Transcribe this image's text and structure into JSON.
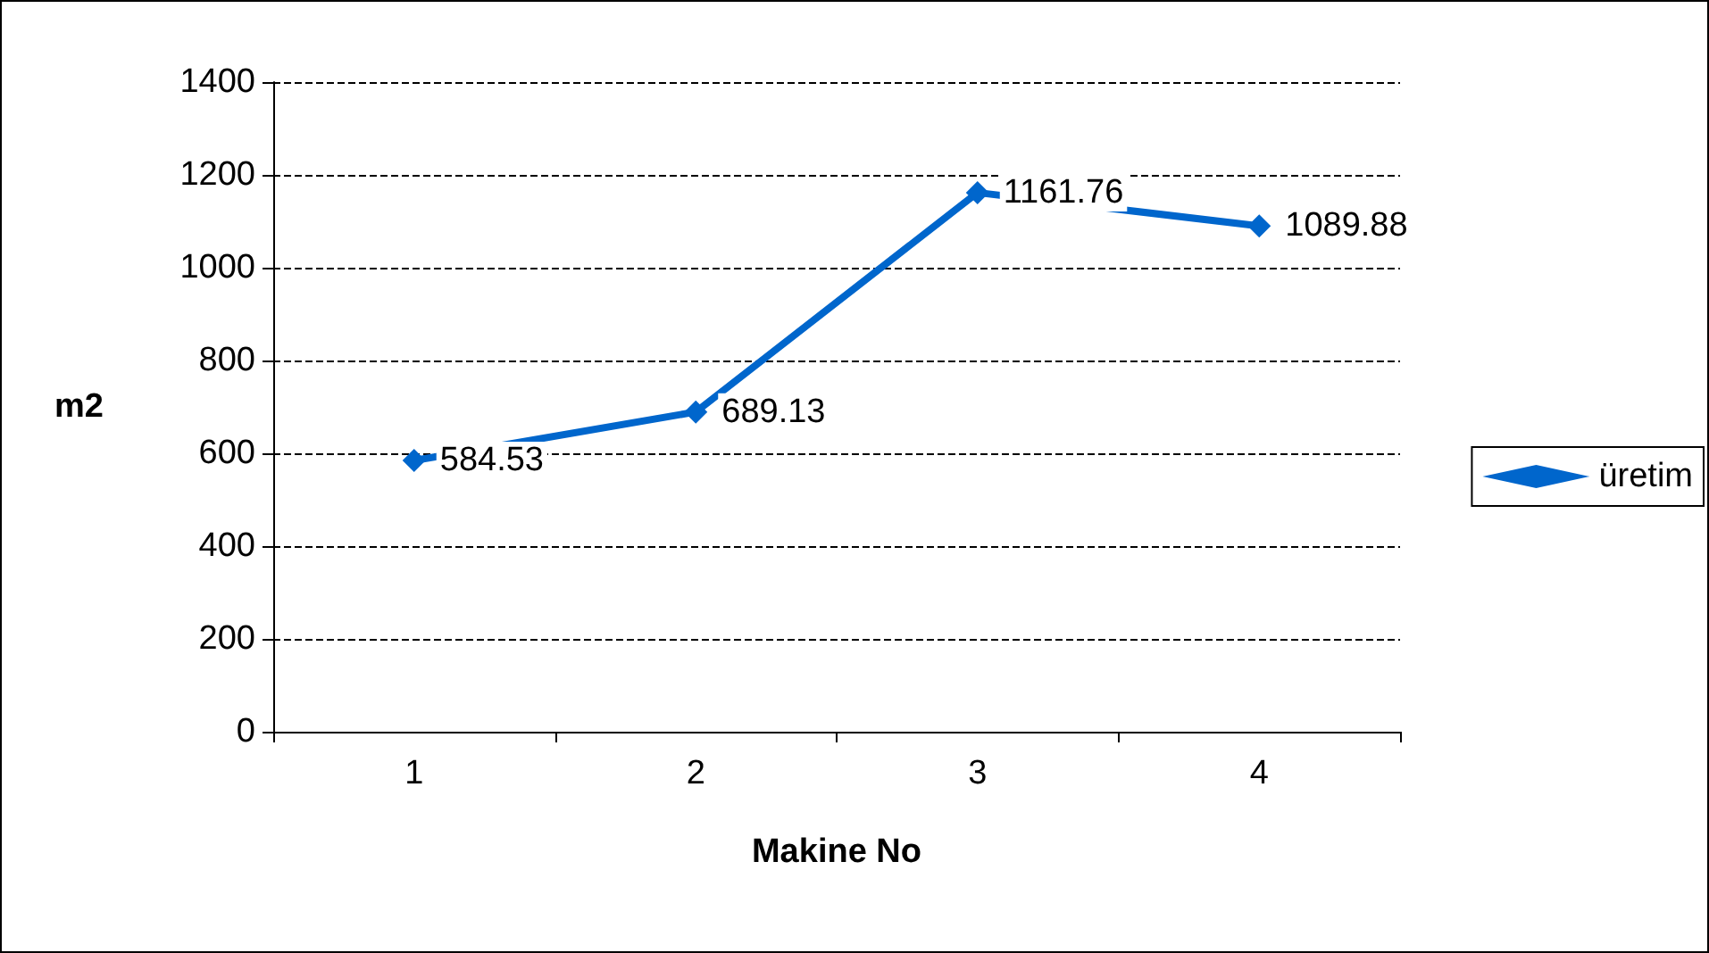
{
  "chart_data": {
    "type": "line",
    "xlabel": "Makine No",
    "ylabel": "m2",
    "categories": [
      "1",
      "2",
      "3",
      "4"
    ],
    "series": [
      {
        "name": "üretim",
        "color": "#0066cc",
        "values": [
          584.53,
          689.13,
          1161.76,
          1089.88
        ]
      }
    ],
    "ylim": [
      0,
      1400
    ],
    "yticks": [
      0,
      200,
      400,
      600,
      800,
      1000,
      1200,
      1400
    ],
    "grid": "y",
    "legend": "right",
    "marker": "diamond",
    "line_style": "solid",
    "data_labels": true
  }
}
